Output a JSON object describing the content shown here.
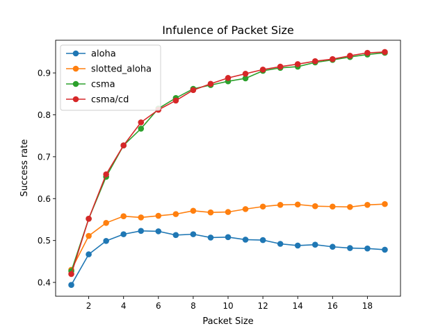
{
  "chart_data": {
    "type": "line",
    "title": "Infulence of Packet Size",
    "xlabel": "Packet Size",
    "ylabel": "Success rate",
    "x": [
      1,
      2,
      3,
      4,
      5,
      6,
      7,
      8,
      9,
      10,
      11,
      12,
      13,
      14,
      15,
      16,
      17,
      18,
      19
    ],
    "xlim": [
      0.1,
      19.9
    ],
    "ylim": [
      0.367,
      0.978
    ],
    "xticks": [
      "2",
      "4",
      "6",
      "8",
      "10",
      "12",
      "14",
      "16",
      "18"
    ],
    "yticks": [
      "0.4",
      "0.5",
      "0.6",
      "0.7",
      "0.8",
      "0.9"
    ],
    "grid": false,
    "legend": "top-left",
    "series": [
      {
        "name": "aloha",
        "color": "#1f77b4",
        "values": [
          0.394,
          0.467,
          0.499,
          0.515,
          0.523,
          0.522,
          0.513,
          0.515,
          0.507,
          0.508,
          0.502,
          0.501,
          0.492,
          0.488,
          0.49,
          0.485,
          0.482,
          0.481,
          0.478
        ]
      },
      {
        "name": "slotted_aloha",
        "color": "#ff7f0e",
        "values": [
          0.43,
          0.511,
          0.542,
          0.558,
          0.555,
          0.559,
          0.563,
          0.571,
          0.567,
          0.568,
          0.575,
          0.581,
          0.585,
          0.586,
          0.582,
          0.581,
          0.58,
          0.585,
          0.587
        ]
      },
      {
        "name": "csma",
        "color": "#2ca02c",
        "values": [
          0.427,
          0.552,
          0.652,
          0.727,
          0.767,
          0.815,
          0.84,
          0.862,
          0.871,
          0.88,
          0.887,
          0.905,
          0.912,
          0.915,
          0.925,
          0.931,
          0.938,
          0.944,
          0.948
        ]
      },
      {
        "name": "csma/cd",
        "color": "#d62728",
        "values": [
          0.42,
          0.552,
          0.658,
          0.727,
          0.782,
          0.812,
          0.834,
          0.859,
          0.874,
          0.888,
          0.898,
          0.908,
          0.915,
          0.921,
          0.928,
          0.933,
          0.941,
          0.948,
          0.95
        ]
      }
    ]
  }
}
